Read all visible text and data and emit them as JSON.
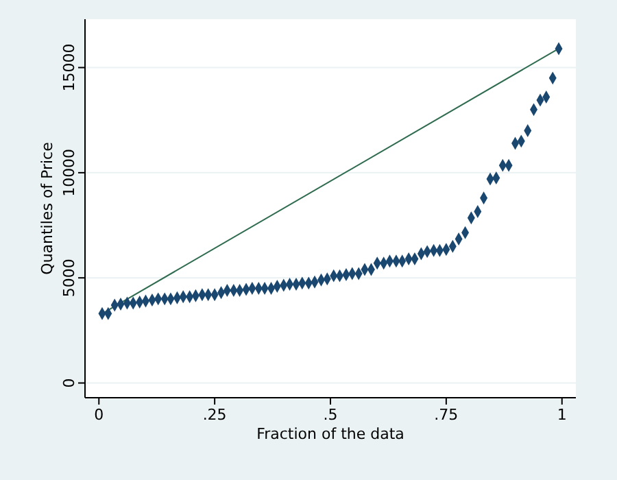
{
  "chart_data": {
    "type": "scatter",
    "xlabel": "Fraction of the data",
    "ylabel": "Quantiles of Price",
    "xlim": [
      -0.03,
      1.03
    ],
    "ylim": [
      -700,
      17300
    ],
    "xticks": [
      0,
      {
        "value": 0.25,
        "label": ".25"
      },
      {
        "value": 0.5,
        "label": ".5"
      },
      {
        "value": 0.75,
        "label": ".75"
      },
      1
    ],
    "yticks": [
      0,
      5000,
      10000,
      15000
    ],
    "grid": "y",
    "series": [
      {
        "color": "#1a476f",
        "marker": "diamond",
        "x": [
          0.007,
          0.02,
          0.034,
          0.047,
          0.061,
          0.074,
          0.088,
          0.101,
          0.115,
          0.128,
          0.142,
          0.155,
          0.169,
          0.182,
          0.196,
          0.209,
          0.223,
          0.236,
          0.25,
          0.264,
          0.277,
          0.291,
          0.304,
          0.318,
          0.331,
          0.345,
          0.358,
          0.372,
          0.385,
          0.399,
          0.412,
          0.426,
          0.439,
          0.453,
          0.466,
          0.48,
          0.493,
          0.507,
          0.52,
          0.534,
          0.547,
          0.561,
          0.574,
          0.588,
          0.601,
          0.615,
          0.628,
          0.642,
          0.655,
          0.669,
          0.682,
          0.696,
          0.709,
          0.723,
          0.736,
          0.75,
          0.764,
          0.777,
          0.791,
          0.804,
          0.818,
          0.831,
          0.845,
          0.858,
          0.872,
          0.885,
          0.899,
          0.912,
          0.926,
          0.939,
          0.953,
          0.966,
          0.98,
          0.993
        ],
        "values": [
          3300,
          3300,
          3700,
          3750,
          3800,
          3800,
          3850,
          3900,
          3950,
          4000,
          4000,
          4000,
          4050,
          4100,
          4100,
          4150,
          4200,
          4200,
          4200,
          4300,
          4400,
          4400,
          4400,
          4450,
          4500,
          4500,
          4500,
          4500,
          4600,
          4650,
          4700,
          4700,
          4750,
          4750,
          4800,
          4900,
          4950,
          5100,
          5100,
          5150,
          5200,
          5200,
          5400,
          5400,
          5700,
          5700,
          5800,
          5800,
          5800,
          5900,
          5900,
          6150,
          6250,
          6300,
          6300,
          6350,
          6500,
          6850,
          7150,
          7850,
          8150,
          8800,
          9700,
          9750,
          10350,
          10350,
          11400,
          11500,
          12000,
          13000,
          13450,
          13600,
          14500,
          15900
        ]
      },
      {
        "type": "line",
        "color": "#2e6b4f",
        "x": [
          0.007,
          0.993
        ],
        "values": [
          3300,
          15900
        ]
      }
    ]
  }
}
